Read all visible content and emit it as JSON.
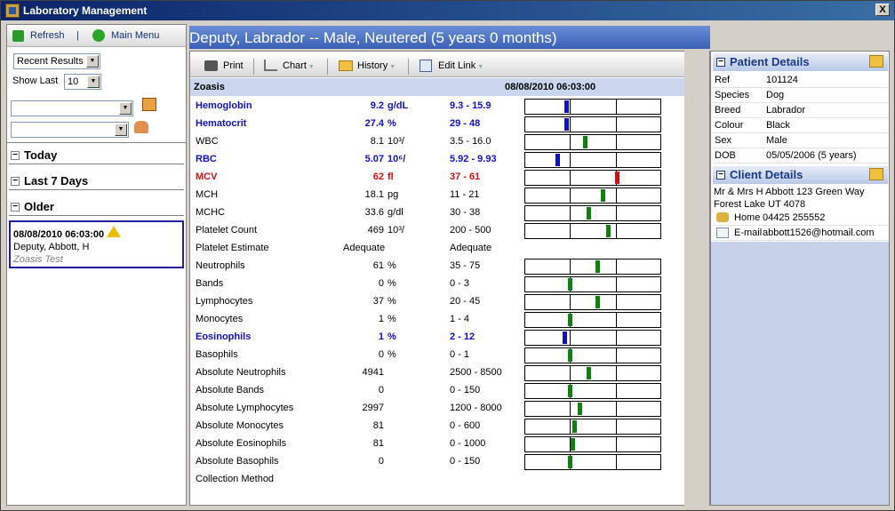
{
  "window": {
    "title": "Laboratory Management",
    "close_label": "X"
  },
  "left_toolbar": {
    "refresh_label": "Refresh",
    "sep": "|",
    "main_menu_label": "Main Menu"
  },
  "filters": {
    "results_select": "Recent Results",
    "show_last_label": "Show Last",
    "show_last_value": "10",
    "select_a": "",
    "select_b": ""
  },
  "groups": [
    {
      "label": "Today"
    },
    {
      "label": "Last 7 Days"
    },
    {
      "label": "Older"
    }
  ],
  "record": {
    "datetime": "08/08/2010 06:03:00",
    "patient": "Deputy, Abbott, H",
    "test": "Zoasis Test"
  },
  "header": {
    "title": "Deputy, Labrador -- Male, Neutered (5 years 0 months)"
  },
  "report_toolbar": {
    "print": "Print",
    "chart": "Chart",
    "history": "History",
    "edit_link": "Edit Link"
  },
  "report": {
    "lab": "Zoasis",
    "datetime": "08/08/2010 06:03:00",
    "rows": [
      {
        "name": "Hemoglobin",
        "value": "9.2",
        "unit": "g/dL",
        "range": "9.3 - 15.9",
        "flag": "low",
        "marker": 0.3,
        "show_bar": true
      },
      {
        "name": "Hematocrit",
        "value": "27.4",
        "unit": "%",
        "range": "29 - 48",
        "flag": "low",
        "marker": 0.3,
        "show_bar": true
      },
      {
        "name": "WBC",
        "value": "8.1",
        "unit": "10³/",
        "range": "3.5 - 16.0",
        "flag": "normal",
        "marker": 0.44,
        "show_bar": true
      },
      {
        "name": "RBC",
        "value": "5.07",
        "unit": "10⁶/",
        "range": "5.92 - 9.93",
        "flag": "low",
        "marker": 0.24,
        "show_bar": true
      },
      {
        "name": "MCV",
        "value": "62",
        "unit": "fl",
        "range": "37 - 61",
        "flag": "high",
        "marker": 0.68,
        "show_bar": true
      },
      {
        "name": "MCH",
        "value": "18.1",
        "unit": "pg",
        "range": "11 - 21",
        "flag": "normal",
        "marker": 0.57,
        "show_bar": true
      },
      {
        "name": "MCHC",
        "value": "33.6",
        "unit": "g/dl",
        "range": "30 - 38",
        "flag": "normal",
        "marker": 0.47,
        "show_bar": true
      },
      {
        "name": "Platelet Count",
        "value": "469",
        "unit": "10³/",
        "range": "200 - 500",
        "flag": "normal",
        "marker": 0.61,
        "show_bar": true
      },
      {
        "name": "Platelet Estimate",
        "value": "Adequate",
        "unit": "",
        "range": "Adequate",
        "flag": "text",
        "marker": null,
        "show_bar": false
      },
      {
        "name": "Neutrophils",
        "value": "61",
        "unit": "%",
        "range": "35 - 75",
        "flag": "normal",
        "marker": 0.53,
        "show_bar": true
      },
      {
        "name": "Bands",
        "value": "0",
        "unit": "%",
        "range": "0 - 3",
        "flag": "normal",
        "marker": 0.33,
        "show_bar": true
      },
      {
        "name": "Lymphocytes",
        "value": "37",
        "unit": "%",
        "range": "20 - 45",
        "flag": "normal",
        "marker": 0.53,
        "show_bar": true
      },
      {
        "name": "Monocytes",
        "value": "1",
        "unit": "%",
        "range": "1 - 4",
        "flag": "normal",
        "marker": 0.33,
        "show_bar": true
      },
      {
        "name": "Eosinophils",
        "value": "1",
        "unit": "%",
        "range": "2 - 12",
        "flag": "low",
        "marker": 0.29,
        "show_bar": true
      },
      {
        "name": "Basophils",
        "value": "0",
        "unit": "%",
        "range": "0 - 1",
        "flag": "normal",
        "marker": 0.33,
        "show_bar": true
      },
      {
        "name": "Absolute Neutrophils",
        "value": "4941",
        "unit": "",
        "range": "2500 - 8500",
        "flag": "normal",
        "marker": 0.47,
        "show_bar": true
      },
      {
        "name": "Absolute Bands",
        "value": "0",
        "unit": "",
        "range": "0 - 150",
        "flag": "normal",
        "marker": 0.33,
        "show_bar": true
      },
      {
        "name": "Absolute Lymphocytes",
        "value": "2997",
        "unit": "",
        "range": "1200 - 8000",
        "flag": "normal",
        "marker": 0.4,
        "show_bar": true
      },
      {
        "name": "Absolute Monocytes",
        "value": "81",
        "unit": "",
        "range": "0 - 600",
        "flag": "normal",
        "marker": 0.36,
        "show_bar": true
      },
      {
        "name": "Absolute Eosinophils",
        "value": "81",
        "unit": "",
        "range": "0 - 1000",
        "flag": "normal",
        "marker": 0.35,
        "show_bar": true
      },
      {
        "name": "Absolute Basophils",
        "value": "0",
        "unit": "",
        "range": "0 - 150",
        "flag": "normal",
        "marker": 0.33,
        "show_bar": true
      },
      {
        "name": "Collection Method",
        "value": "",
        "unit": "",
        "range": "",
        "flag": "text",
        "marker": null,
        "show_bar": false
      }
    ]
  },
  "colors": {
    "low": "#1010c8",
    "high": "#d01010",
    "normal": "#108010",
    "text": "#000000"
  },
  "patient": {
    "section_label": "Patient Details",
    "fields": [
      {
        "k": "Ref",
        "v": "101124"
      },
      {
        "k": "Species",
        "v": "Dog"
      },
      {
        "k": "Breed",
        "v": "Labrador"
      },
      {
        "k": "Colour",
        "v": "Black"
      },
      {
        "k": "Sex",
        "v": "Male"
      },
      {
        "k": "DOB",
        "v": "05/05/2006 (5 years)"
      }
    ]
  },
  "client": {
    "section_label": "Client Details",
    "address_line1": "Mr & Mrs H Abbott 123 Green Way",
    "address_line2": "Forest Lake UT 4078",
    "home_label": "Home",
    "home_value": "04425 255552",
    "email_label": "E-mail",
    "email_value": "abbott1526@hotmail.com"
  }
}
